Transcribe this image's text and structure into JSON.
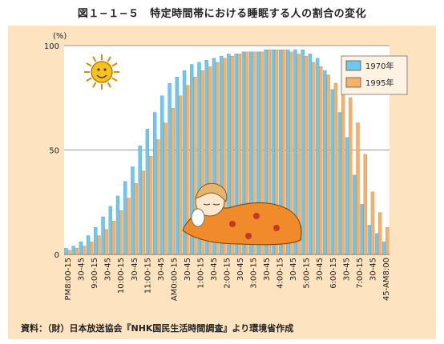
{
  "figure_title": "図１−１−５　特定時間帯における睡眠する人の割合の変化",
  "source": "資料：（財）日本放送協会『NHK国民生活時間調査』より環境省作成",
  "colors": {
    "background": "#fde3bf",
    "plot": "#ffffff",
    "series_1970": "#6ec8ec",
    "series_1995": "#f7b06a"
  },
  "icons": [
    "sun-icon",
    "sleeping-child-illustration"
  ],
  "chart_data": {
    "type": "bar",
    "ylabel": "(%)",
    "ylim": [
      0,
      100
    ],
    "yticks": [
      0,
      50,
      100
    ],
    "legend_position": "top-right",
    "series": [
      {
        "name": "1970年",
        "color": "#6ec8ec",
        "values": [
          3,
          4,
          6,
          9,
          13,
          18,
          23,
          28,
          35,
          42,
          52,
          60,
          68,
          76,
          82,
          85,
          88,
          91,
          92,
          93,
          94,
          95,
          96,
          96,
          97,
          97,
          97,
          98,
          98,
          98,
          98,
          98,
          98,
          96,
          94,
          88,
          79,
          68,
          56,
          38,
          24,
          14,
          10,
          6
        ]
      },
      {
        "name": "1995年",
        "color": "#f7b06a",
        "values": [
          2,
          3,
          4,
          6,
          9,
          12,
          16,
          21,
          27,
          34,
          40,
          47,
          55,
          63,
          70,
          76,
          81,
          85,
          88,
          90,
          92,
          94,
          95,
          96,
          97,
          97,
          97,
          98,
          98,
          98,
          97,
          96,
          95,
          92,
          90,
          86,
          82,
          78,
          75,
          63,
          48,
          30,
          20,
          13
        ]
      }
    ],
    "x_tick_labels": [
      "PM8:00-15",
      "30-45",
      "9:00-15",
      "30-45",
      "10:00-15",
      "30-45",
      "11:00-15",
      "30-45",
      "AM0:00-15",
      "30-45",
      "1:00-15",
      "30-45",
      "2:00-15",
      "30-45",
      "3:00-15",
      "30-45",
      "4:00-15",
      "30-45",
      "5:00-15",
      "30-45",
      "6:00-15",
      "30-45",
      "7:00-15",
      "30-45",
      "45-AM8:00"
    ]
  }
}
